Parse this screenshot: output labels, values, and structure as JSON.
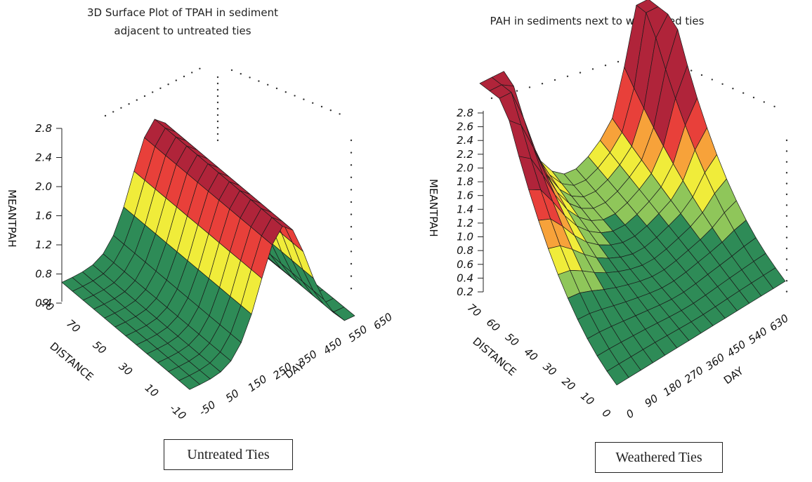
{
  "charts": {
    "left": {
      "title_line1": "3D Surface Plot of TPAH in sediment",
      "title_line2": "adjacent to untreated ties",
      "caption": "Untreated Ties"
    },
    "right": {
      "title": "PAH in sediments next to weathered ties",
      "caption": "Weathered Ties"
    }
  },
  "colors": {
    "band_low": "#2e8b57",
    "band_mid": "#8fc65a",
    "band_high": "#f0ec3a",
    "band_orange": "#f7a23a",
    "band_red": "#e8403a",
    "band_dark_red": "#b0243a",
    "mesh": "#1a1a1a"
  },
  "chart_data": [
    {
      "type": "surface3d",
      "title": "3D Surface Plot of TPAH in sediment adjacent to untreated ties",
      "xlabel": "DAY",
      "ylabel": "DISTANCE",
      "zlabel": "MEANTPAH",
      "x_ticks": [
        "-50",
        "50",
        "150",
        "250",
        "350",
        "450",
        "550",
        "650"
      ],
      "y_ticks": [
        "-10",
        "10",
        "30",
        "50",
        "70",
        "90"
      ],
      "z_ticks": [
        "0.4",
        "0.8",
        "1.2",
        "1.6",
        "2.0",
        "2.4",
        "2.8"
      ],
      "x_range": [
        -50,
        650
      ],
      "y_range": [
        -10,
        90
      ],
      "z_range": [
        0.2,
        2.8
      ],
      "surface_shape": "Ridge peaking near DAY 350 (MEANTPAH about 2.0), falling to about 0.2 at DAY -50 and about 0.3 at DAY 650; weak dependence on DISTANCE",
      "sample_points": [
        {
          "day": -50,
          "mean": 0.3
        },
        {
          "day": 50,
          "mean": 0.5
        },
        {
          "day": 150,
          "mean": 0.9
        },
        {
          "day": 250,
          "mean": 1.5
        },
        {
          "day": 350,
          "mean": 2.0
        },
        {
          "day": 450,
          "mean": 1.9
        },
        {
          "day": 550,
          "mean": 1.2
        },
        {
          "day": 650,
          "mean": 0.3
        }
      ]
    },
    {
      "type": "surface3d",
      "title": "PAH in sediments next to weathered ties",
      "xlabel": "DAY",
      "ylabel": "DISTANCE",
      "zlabel": "MEANTPAH",
      "x_ticks": [
        "0",
        "90",
        "180",
        "270",
        "360",
        "450",
        "540",
        "630"
      ],
      "y_ticks": [
        "0",
        "10",
        "20",
        "30",
        "40",
        "50",
        "60",
        "70"
      ],
      "z_ticks": [
        "0.2",
        "0.4",
        "0.6",
        "0.8",
        "1.0",
        "1.2",
        "1.4",
        "1.6",
        "1.8",
        "2.0",
        "2.2",
        "2.4",
        "2.6",
        "2.8"
      ],
      "x_range": [
        0,
        630
      ],
      "y_range": [
        0,
        70
      ],
      "z_range": [
        0.2,
        2.8
      ],
      "surface_shape": "Peak about 2.8 at DAY 0 and DISTANCE 70; second peak about 2.7 at DAY 630 and DISTANCE 70; valley about 1.3 near mid DAY; low about 0.2 at DISTANCE 0",
      "sample_points": [
        {
          "day": 0,
          "distance": 70,
          "mean": 2.8
        },
        {
          "day": 630,
          "distance": 70,
          "mean": 2.7
        },
        {
          "day": 360,
          "distance": 70,
          "mean": 1.4
        },
        {
          "day": 0,
          "distance": 0,
          "mean": 0.3
        },
        {
          "day": 630,
          "distance": 0,
          "mean": 0.6
        }
      ]
    }
  ]
}
